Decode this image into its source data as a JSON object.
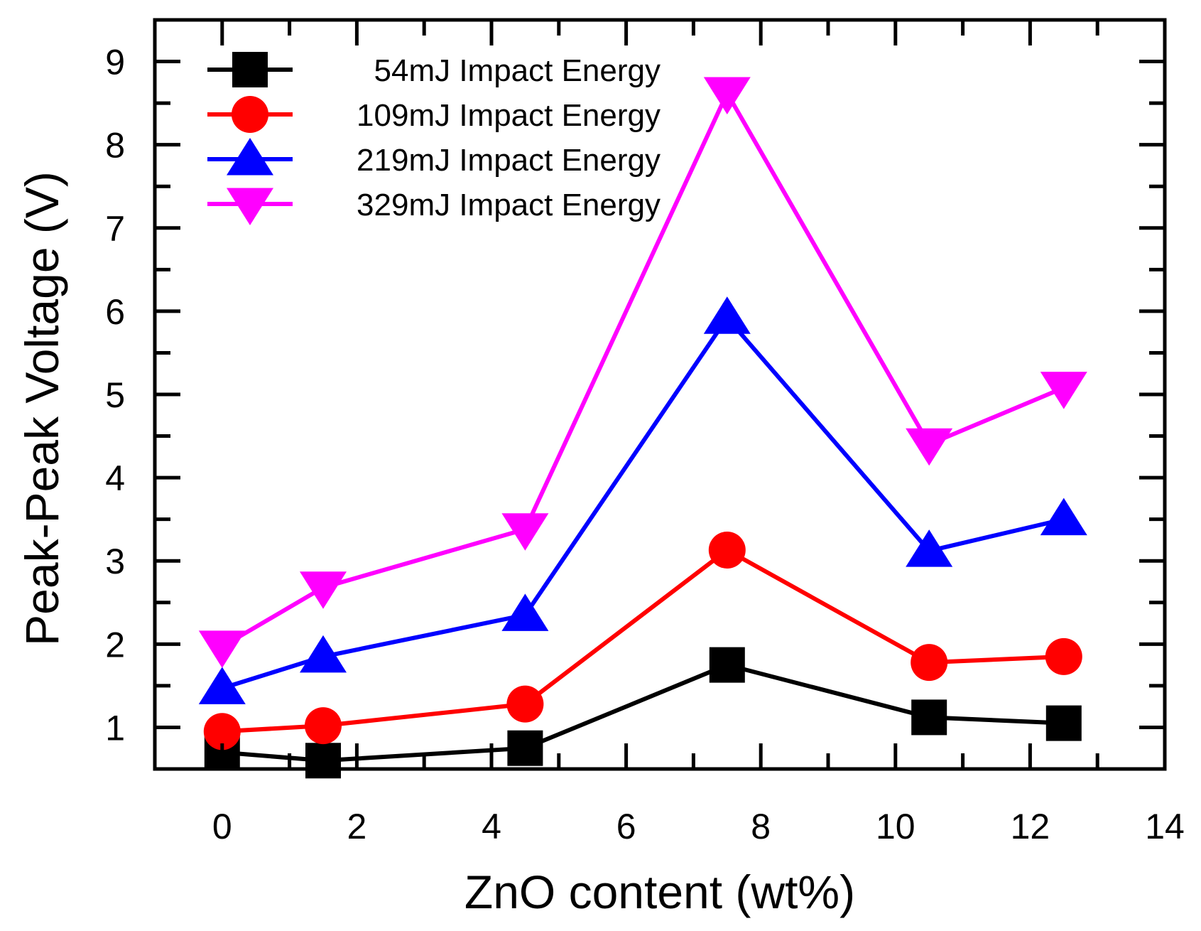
{
  "chart_data": {
    "type": "line",
    "title": "",
    "xlabel": "ZnO content (wt%)",
    "ylabel": "Peak-Peak Voltage (V)",
    "xlim": [
      -1,
      14
    ],
    "ylim": [
      0.5,
      9.5
    ],
    "x_ticks": [
      0,
      2,
      4,
      6,
      8,
      10,
      12,
      14
    ],
    "y_ticks": [
      1,
      2,
      3,
      4,
      5,
      6,
      7,
      8,
      9
    ],
    "grid": false,
    "legend_position": "top-left",
    "x": [
      0,
      1.5,
      4.5,
      7.5,
      10.5,
      12.5
    ],
    "series": [
      {
        "name": "54mJ Impact Energy",
        "color": "#000000",
        "marker": "square",
        "values": [
          0.7,
          0.6,
          0.75,
          1.75,
          1.12,
          1.05
        ]
      },
      {
        "name": "109mJ Impact Energy",
        "color": "#ff0000",
        "marker": "circle",
        "values": [
          0.95,
          1.02,
          1.28,
          3.13,
          1.78,
          1.85
        ]
      },
      {
        "name": "219mJ Impact Energy",
        "color": "#0000ff",
        "marker": "triangle-up",
        "values": [
          1.47,
          1.85,
          2.35,
          5.92,
          3.12,
          3.5
        ]
      },
      {
        "name": "329mJ Impact Energy",
        "color": "#ff00ff",
        "marker": "triangle-down",
        "values": [
          1.97,
          2.68,
          3.38,
          8.62,
          4.4,
          5.08
        ]
      }
    ]
  }
}
